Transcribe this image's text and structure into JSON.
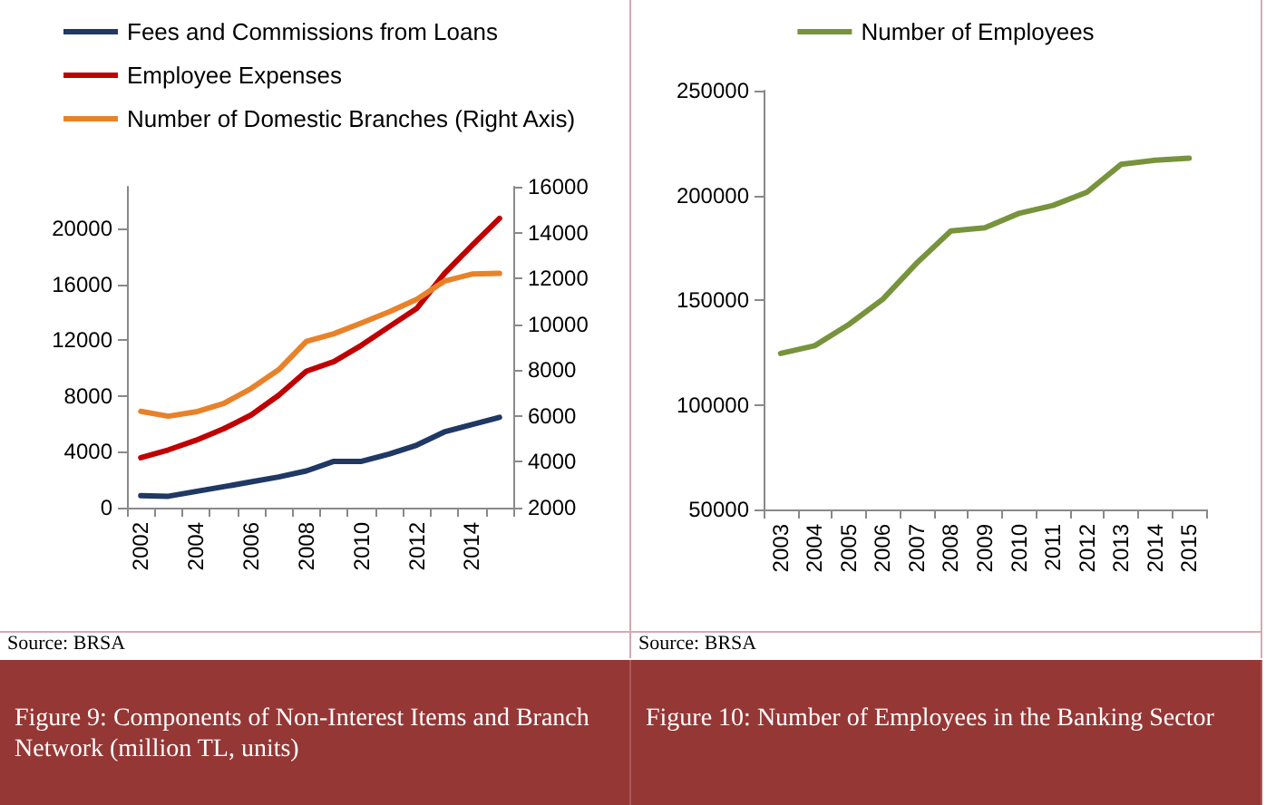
{
  "chart_data": [
    {
      "type": "line",
      "title": "Figure 9: Components of Non-Interest Items and Branch Network (million TL, units)",
      "annotations": [
        "Source: BRSA"
      ],
      "categories": [
        "2002",
        null,
        "2004",
        null,
        "2006",
        null,
        "2008",
        null,
        "2010",
        null,
        "2012",
        null,
        "2014",
        null
      ],
      "series": [
        {
          "name": "Fees and Commissions from Loans",
          "color": "#1f3864",
          "values": [
            860,
            820,
            1160,
            1500,
            1850,
            2200,
            2630,
            3320,
            3320,
            3840,
            4480,
            5430,
            5950,
            6470
          ]
        },
        {
          "name": "Employee Expenses",
          "color": "#c00000",
          "values": [
            3580,
            4140,
            4830,
            5650,
            6640,
            8060,
            9780,
            10470,
            11640,
            12970,
            14270,
            16770,
            18790,
            20730
          ]
        },
        {
          "name": "Number of Domestic Branches (Right Axis)",
          "color": "#e8822a",
          "axis": "y2",
          "values": [
            6200,
            5990,
            6180,
            6540,
            7200,
            8020,
            9250,
            9590,
            10060,
            10540,
            11090,
            11880,
            12190,
            12220
          ]
        }
      ],
      "ylim": [
        0,
        23000
      ],
      "yticks": [
        0,
        4000,
        8000,
        12000,
        16000,
        20000
      ],
      "y2lim": [
        2000,
        16000
      ],
      "y2ticks": [
        2000,
        4000,
        6000,
        8000,
        10000,
        12000,
        14000,
        16000
      ],
      "grid": false,
      "legend": "top left",
      "marker": "none",
      "line_style": "solid"
    },
    {
      "type": "line",
      "title": "Figure 10: Number of Employees in the Banking Sector",
      "annotations": [
        "Source: BRSA"
      ],
      "categories": [
        "2003",
        "2004",
        "2005",
        "2006",
        "2007",
        "2008",
        "2009",
        "2010",
        "2011",
        "2012",
        "2013",
        "2014",
        "2015"
      ],
      "series": [
        {
          "name": "Number of Employees",
          "color": "#77933c",
          "values": [
            124500,
            128200,
            138300,
            150400,
            167700,
            183000,
            184500,
            191400,
            195200,
            201500,
            214800,
            216800,
            217700
          ]
        }
      ],
      "ylim": [
        50000,
        250000
      ],
      "yticks": [
        50000,
        100000,
        150000,
        200000,
        250000
      ],
      "grid": false,
      "legend": "top",
      "marker": "none",
      "line_style": "solid"
    }
  ]
}
